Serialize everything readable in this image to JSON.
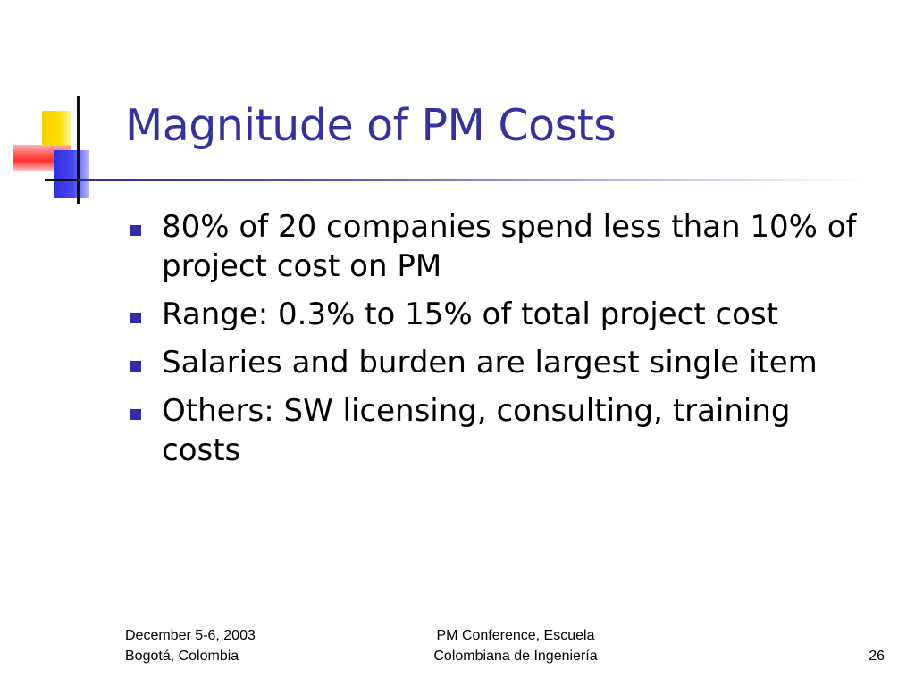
{
  "slide": {
    "title": "Magnitude of PM Costs",
    "bullets": [
      "80% of 20 companies spend less than 10% of project cost on PM",
      "Range: 0.3% to 15% of total project cost",
      "Salaries and burden are largest single item",
      "Others: SW licensing, consulting, training costs"
    ]
  },
  "footer": {
    "left_line1": "December 5-6, 2003",
    "left_line2": "Bogotá, Colombia",
    "center_line1": "PM Conference, Escuela",
    "center_line2": "Colombiana de Ingeniería",
    "page_number": "26"
  },
  "colors": {
    "title": "#333399",
    "bullet_marker": "#2e2ea8",
    "logo_yellow": "#ffe000",
    "logo_red": "#ff3030",
    "logo_blue": "#3030e0"
  }
}
